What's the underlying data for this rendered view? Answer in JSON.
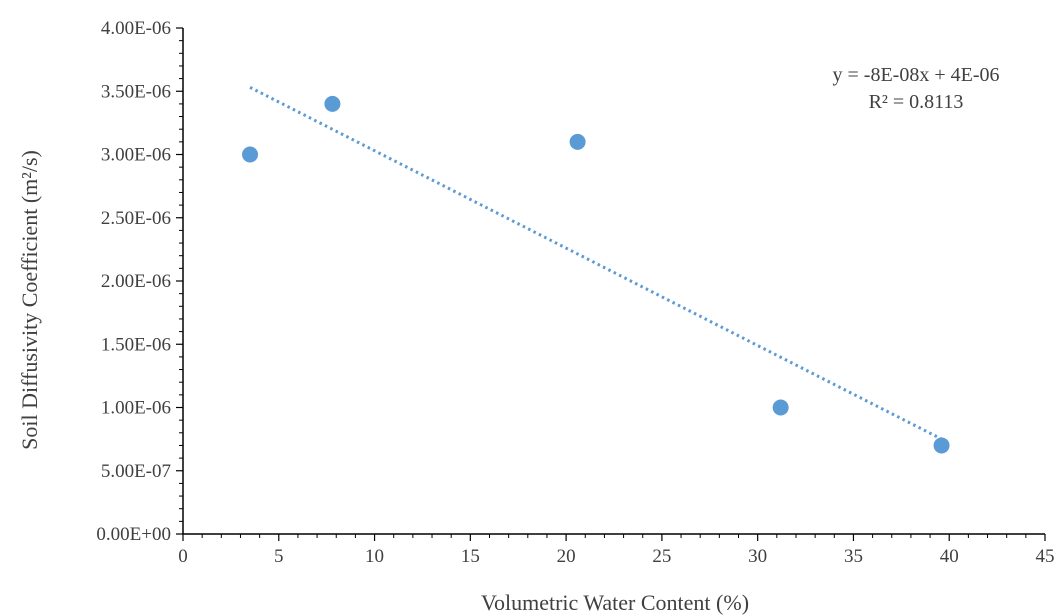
{
  "chart_data": {
    "type": "scatter",
    "xlabel": "Volumetric  Water Content (%)",
    "ylabel": "Soil Diffusivity Coefficient (m²/s)",
    "xlim": [
      0,
      45
    ],
    "ylim": [
      0,
      4e-06
    ],
    "x_ticks": [
      0,
      5,
      10,
      15,
      20,
      25,
      30,
      35,
      40,
      45
    ],
    "x_tick_labels": [
      "0",
      "5",
      "10",
      "15",
      "20",
      "25",
      "30",
      "35",
      "40",
      "45"
    ],
    "y_ticks": [
      0,
      5e-07,
      1e-06,
      1.5e-06,
      2e-06,
      2.5e-06,
      3e-06,
      3.5e-06,
      4e-06
    ],
    "y_tick_labels": [
      "0.00E+00",
      "5.00E-07",
      "1.00E-06",
      "1.50E-06",
      "2.00E-06",
      "2.50E-06",
      "3.00E-06",
      "3.50E-06",
      "4.00E-06"
    ],
    "grid": false,
    "legend": false,
    "series": [
      {
        "x": [
          3.5,
          7.8,
          20.6,
          31.2,
          39.6
        ],
        "y": [
          3e-06,
          3.4e-06,
          3.1e-06,
          1e-06,
          7e-07
        ],
        "color": "#5b9bd5"
      }
    ],
    "trendline": {
      "type": "linear",
      "style": "dotted",
      "color": "#5b9bd5",
      "x_range": [
        3.5,
        39.6
      ],
      "slope": -7.7e-08,
      "intercept": 3.8e-06,
      "equation_text": "y = -8E-08x + 4E-06",
      "r2_text": "R² = 0.8113"
    }
  }
}
